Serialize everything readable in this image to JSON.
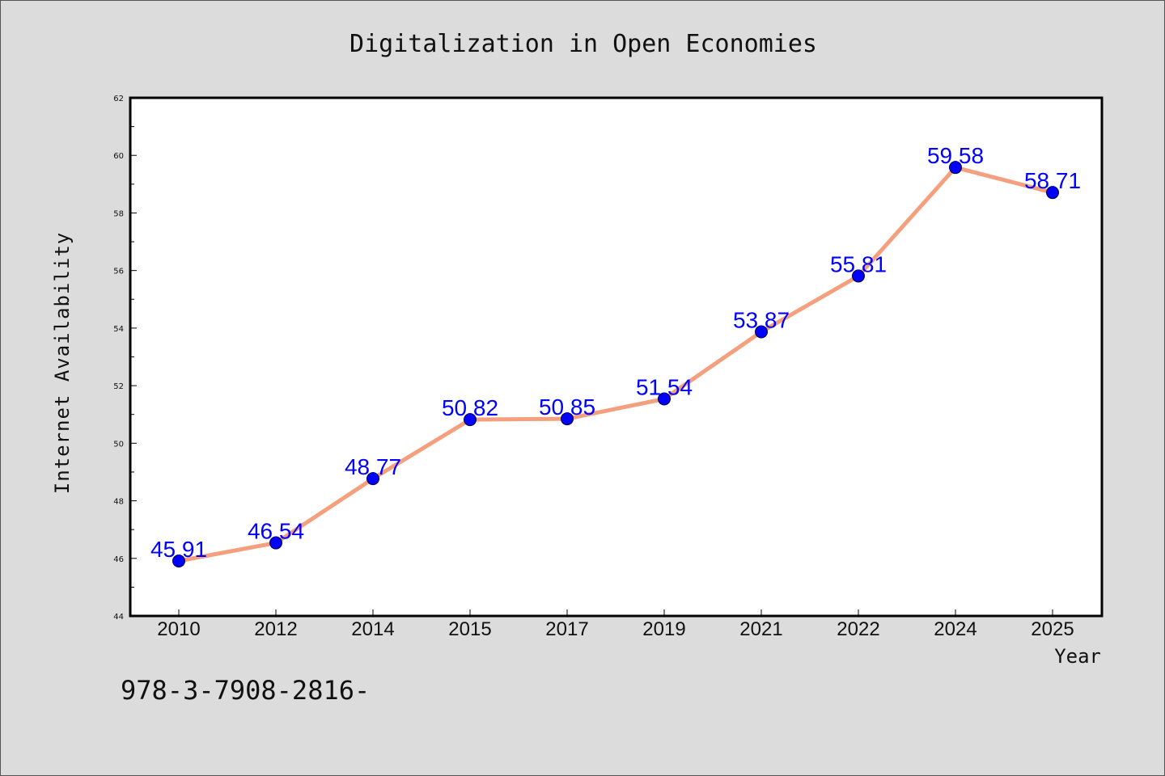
{
  "chart_data": {
    "type": "line",
    "title": "Digitalization in Open Economies",
    "xlabel": "Year",
    "ylabel": "Internet Availability",
    "categories": [
      "2010",
      "2012",
      "2014",
      "2015",
      "2017",
      "2019",
      "2021",
      "2022",
      "2024",
      "2025"
    ],
    "series": [
      {
        "values": [
          45.91,
          46.54,
          48.77,
          50.82,
          50.85,
          51.54,
          53.87,
          55.81,
          59.58,
          58.71
        ],
        "data_labels": [
          "45.91",
          "46.54",
          "48.77",
          "50.82",
          "50.85",
          "51.54",
          "53.87",
          "55.81",
          "59.58",
          "58.71"
        ],
        "line_color": "#f4a07e",
        "marker_color": "#0000ff"
      }
    ],
    "ylim": [
      44,
      62
    ],
    "yticks": [
      44,
      46,
      48,
      50,
      52,
      54,
      56,
      58,
      60,
      62
    ],
    "grid": false,
    "legend": "none"
  },
  "footer_text": "978-3-7908-2816-"
}
